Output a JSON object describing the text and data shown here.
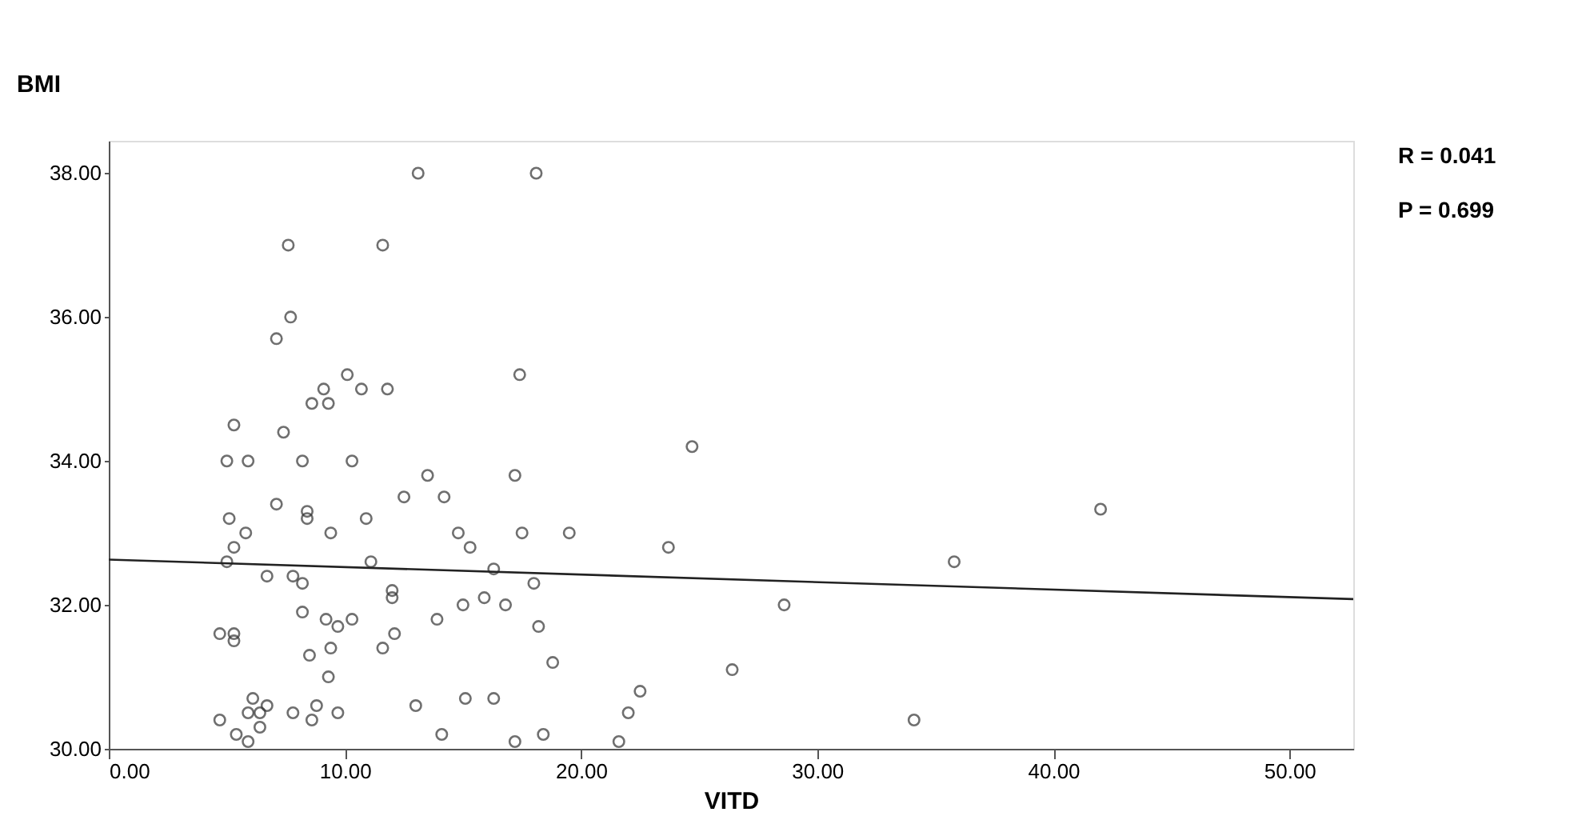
{
  "chart_data": {
    "type": "scatter",
    "xlabel": "VITD",
    "ylabel": "BMI",
    "xlim": [
      0,
      52.7
    ],
    "ylim": [
      30,
      38.45
    ],
    "xticks": [
      {
        "value": 0,
        "label": "0.00"
      },
      {
        "value": 10,
        "label": "10.00"
      },
      {
        "value": 20,
        "label": "20.00"
      },
      {
        "value": 30,
        "label": "30.00"
      },
      {
        "value": 40,
        "label": "40.00"
      },
      {
        "value": 50,
        "label": "50.00"
      }
    ],
    "yticks": [
      {
        "value": 30,
        "label": "30.00"
      },
      {
        "value": 32,
        "label": "32.00"
      },
      {
        "value": 34,
        "label": "34.00"
      },
      {
        "value": 36,
        "label": "36.00"
      },
      {
        "value": 38,
        "label": "38.00"
      }
    ],
    "grid": false,
    "marker": "circle",
    "annotations": [
      "R = 0.041",
      "P = 0.699"
    ],
    "series": [
      {
        "color": "#333333",
        "x": [
          13.1,
          18.1,
          7.6,
          11.6,
          7.7,
          7.1,
          10.1,
          17.4,
          9.1,
          10.7,
          11.8,
          8.6,
          9.3,
          5.3,
          7.4,
          24.7,
          5.0,
          5.9,
          8.2,
          10.3,
          13.5,
          17.2,
          14.2,
          12.5,
          7.1,
          42.0,
          8.4,
          8.4,
          5.1,
          10.9,
          9.4,
          5.8,
          14.8,
          17.5,
          19.5,
          15.3,
          5.3,
          23.7,
          5.0,
          11.1,
          16.3,
          35.8,
          6.7,
          7.8,
          8.2,
          18.0,
          12.0,
          12.0,
          15.9,
          16.8,
          15.0,
          28.6,
          8.2,
          9.2,
          10.3,
          13.9,
          18.2,
          9.7,
          4.7,
          5.3,
          5.3,
          12.1,
          8.5,
          9.4,
          11.6,
          18.8,
          9.3,
          6.1,
          15.1,
          16.3,
          6.7,
          8.8,
          13.0,
          4.7,
          8.6,
          5.9,
          6.4,
          7.8,
          9.7,
          6.4,
          5.4,
          14.1,
          18.4,
          5.9,
          17.2,
          22.5,
          22.0,
          21.6,
          26.4,
          34.1
        ],
        "values": [
          38.0,
          38.0,
          37.0,
          37.0,
          36.0,
          35.7,
          35.2,
          35.2,
          35.0,
          35.0,
          35.0,
          34.8,
          34.8,
          34.5,
          34.4,
          34.2,
          34.0,
          34.0,
          34.0,
          34.0,
          33.8,
          33.8,
          33.5,
          33.5,
          33.4,
          33.33,
          33.3,
          33.2,
          33.2,
          33.2,
          33.0,
          33.0,
          33.0,
          33.0,
          33.0,
          32.8,
          32.8,
          32.8,
          32.6,
          32.6,
          32.5,
          32.6,
          32.4,
          32.4,
          32.3,
          32.3,
          32.2,
          32.1,
          32.1,
          32.0,
          32.0,
          32.0,
          31.9,
          31.8,
          31.8,
          31.8,
          31.7,
          31.7,
          31.6,
          31.6,
          31.5,
          31.6,
          31.3,
          31.4,
          31.4,
          31.2,
          31.0,
          30.7,
          30.7,
          30.7,
          30.6,
          30.6,
          30.6,
          30.4,
          30.4,
          30.5,
          30.5,
          30.5,
          30.5,
          30.3,
          30.2,
          30.2,
          30.2,
          30.1,
          30.1,
          30.8,
          30.5,
          30.1,
          31.1,
          30.4
        ]
      },
      {
        "type": "line",
        "color": "#222222",
        "marker": "none",
        "x": [
          0,
          52.7
        ],
        "values": [
          32.63,
          32.08
        ]
      }
    ]
  }
}
